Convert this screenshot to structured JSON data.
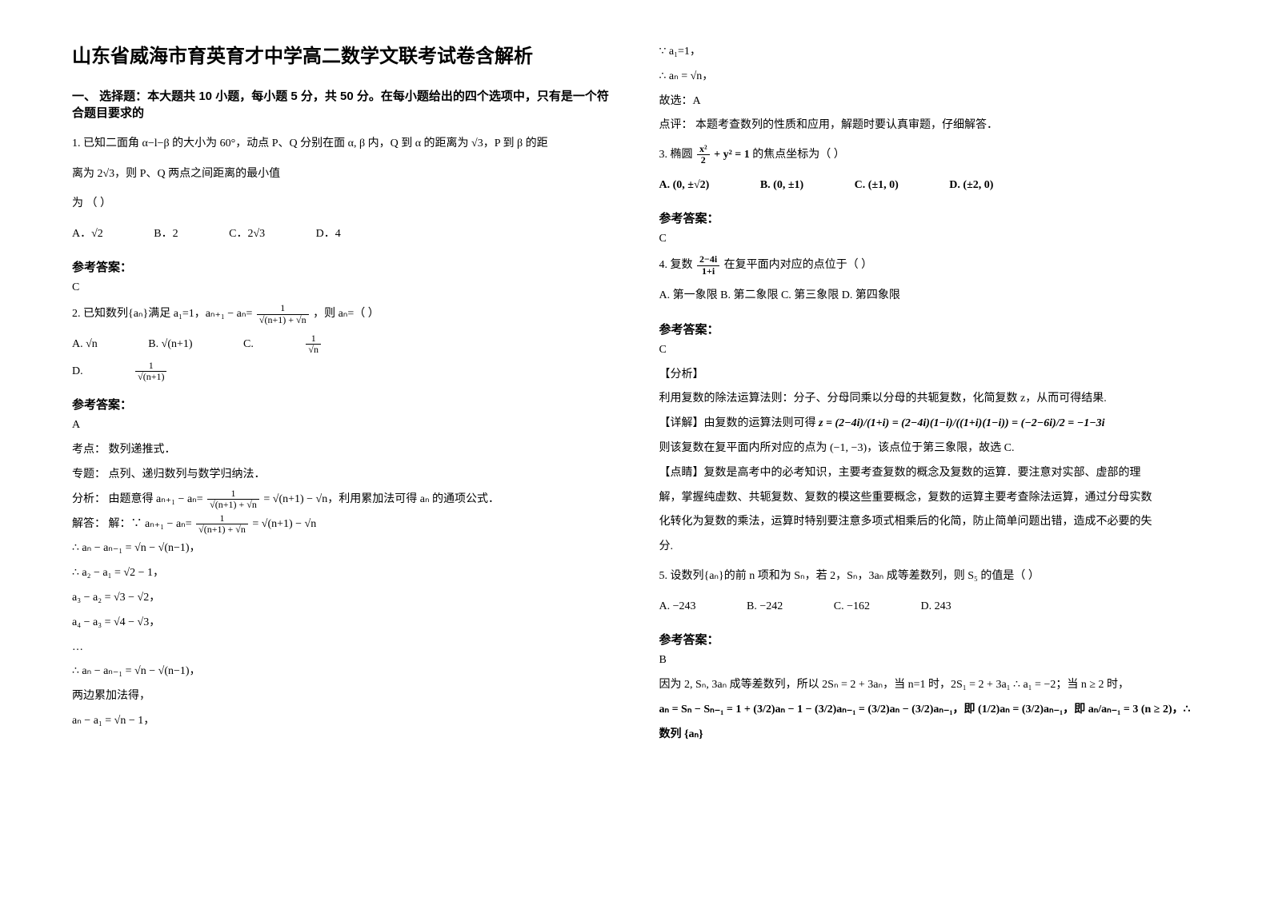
{
  "title": "山东省威海市育英育才中学高二数学文联考试卷含解析",
  "section1_header": "一、 选择题：本大题共 10 小题，每小题 5 分，共 50 分。在每小题给出的四个选项中，只有是一个符合题目要求的",
  "q1_line1": "1. 已知二面角 α−l−β 的大小为 60°，动点 P、Q 分别在面 α, β 内，Q 到 α 的距离为 √3，P 到 β 的距",
  "q1_line2": "离为 2√3，则 P、Q 两点之间距离的最小值",
  "q1_line3": "为                                                                        （        ）",
  "q1_optA": "A．√2",
  "q1_optB": "B．2",
  "q1_optC": "C．2√3",
  "q1_optD": "D．4",
  "ans_label": "参考答案：",
  "q1_ans": "C",
  "q2_stem": "2. 已知数列{aₙ}满足 a₁=1，aₙ₊₁ − aₙ=",
  "q2_frac_num": "1",
  "q2_frac_den": "√(n+1) + √n",
  "q2_tail": "，则 aₙ=（      ）",
  "q2_optA": "A. √n",
  "q2_optB": "B. √(n+1)",
  "q2_optC_pre": "C. ",
  "q2_optC_num": "1",
  "q2_optC_den": "√n",
  "q2_optD_pre": "D. ",
  "q2_optD_num": "1",
  "q2_optD_den": "√(n+1)",
  "q2_ans": "A",
  "q2_kd": "考点：  数列递推式．",
  "q2_zt": "专题：  点列、递归数列与数学归纳法．",
  "q2_fx": "分析：  由题意得 aₙ₊₁ − aₙ=",
  "q2_fx_tail": " = √(n+1) − √n，利用累加法可得 aₙ 的通项公式．",
  "q2_jd": "解答：  解：∵ aₙ₊₁ − aₙ=",
  "q2_jd_tail": " = √(n+1) − √n",
  "q2_s1": "∴ aₙ − aₙ₋₁ = √n − √(n−1)，",
  "q2_s2": "∴ a₂ − a₁ = √2 − 1，",
  "q2_s3": "a₃ − a₂ = √3 − √2，",
  "q2_s4": "a₄ − a₃ = √4 − √3，",
  "q2_s5": "…",
  "q2_s6": "∴ aₙ − aₙ₋₁ = √n − √(n−1)，",
  "q2_s7": "两边累加法得，",
  "q2_s8": "aₙ − a₁ = √n − 1，",
  "r_s1": "∵ a₁=1，",
  "r_s2": "∴ aₙ = √n，",
  "r_s3": "故选：A",
  "r_dp": "点评：  本题考查数列的性质和应用，解题时要认真审题，仔细解答．",
  "q3_pre": "3. 椭圆 ",
  "q3_eq_num": "x²",
  "q3_eq_den": "2",
  "q3_eq_tail": " + y² = 1",
  "q3_tail": "    的焦点坐标为（        ）",
  "q3_optA": "A. (0, ±√2)",
  "q3_optB": "B. (0, ±1)",
  "q3_optC": "C. (±1, 0)",
  "q3_optD": "D. (±2, 0)",
  "q3_ans": "C",
  "q4_pre": "4. 复数 ",
  "q4_num": "2−4i",
  "q4_den": "1+i",
  "q4_tail": " 在复平面内对应的点位于（        ）",
  "q4_opts": "A. 第一象限    B. 第二象限    C. 第三象限    D. 第四象限",
  "q4_ans": "C",
  "q4_fx_h": "【分析】",
  "q4_fx": "利用复数的除法运算法则：分子、分母同乘以分母的共轭复数，化简复数 z，从而可得结果.",
  "q4_xj_pre": "【详解】由复数的运算法则可得",
  "q4_xj_eq": "z = (2−4i)/(1+i) = (2−4i)(1−i)/((1+i)(1−i)) = (−2−6i)/2 = −1−3i",
  "q4_c1": "则该复数在复平面内所对应的点为 (−1, −3)，该点位于第三象限，故选 C.",
  "q4_c2": "【点睛】复数是高考中的必考知识，主要考查复数的概念及复数的运算．要注意对实部、虚部的理",
  "q4_c3": "解，掌握纯虚数、共轭复数、复数的模这些重要概念，复数的运算主要考查除法运算，通过分母实数",
  "q4_c4": "化转化为复数的乘法，运算时特别要注意多项式相乘后的化简，防止简单问题出错，造成不必要的失",
  "q4_c5": "分.",
  "q5_stem": "5. 设数列{aₙ}的前 n 项和为 Sₙ，若 2，Sₙ，3aₙ 成等差数列，则 S₅ 的值是（        ）",
  "q5_optA": "A. −243",
  "q5_optB": "B. −242",
  "q5_optC": "C. −162",
  "q5_optD": "D. 243",
  "q5_ans": "B",
  "q5_l1": "因为 2, Sₙ, 3aₙ 成等差数列，所以 2Sₙ = 2 + 3aₙ，当 n=1 时，2S₁ = 2 + 3a₁ ∴ a₁ = −2；当 n ≥ 2 时，",
  "q5_l2": "aₙ = Sₙ − Sₙ₋₁ = 1 + (3/2)aₙ − 1 − (3/2)aₙ₋₁ = (3/2)aₙ − (3/2)aₙ₋₁，即 (1/2)aₙ = (3/2)aₙ₋₁，即 aₙ/aₙ₋₁ = 3 (n ≥ 2)，∴ 数列 {aₙ}"
}
